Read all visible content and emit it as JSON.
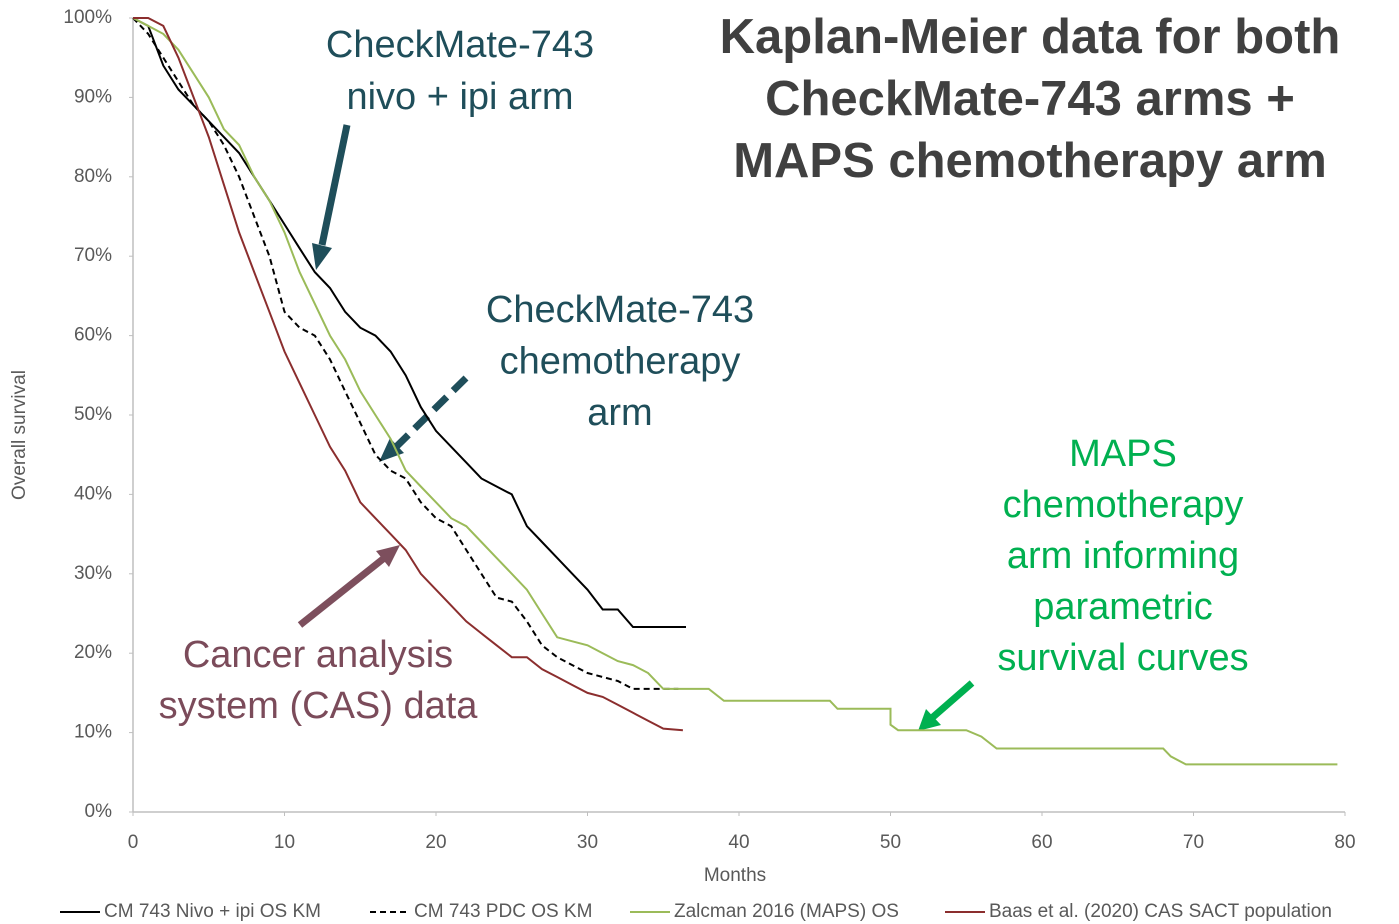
{
  "chart_data": {
    "type": "line",
    "title": [
      "Kaplan-Meier data for both",
      "CheckMate-743 arms +",
      "MAPS chemotherapy arm"
    ],
    "xlabel": "Months",
    "ylabel": "Overall survival",
    "xlim": [
      0,
      80
    ],
    "xticks": [
      0,
      10,
      20,
      30,
      40,
      50,
      60,
      70,
      80
    ],
    "ylim": [
      0,
      100
    ],
    "yticks": [
      {
        "value": 0,
        "label": "0%"
      },
      {
        "value": 10,
        "label": "10%"
      },
      {
        "value": 20,
        "label": "20%"
      },
      {
        "value": 30,
        "label": "30%"
      },
      {
        "value": 40,
        "label": "40%"
      },
      {
        "value": 50,
        "label": "50%"
      },
      {
        "value": 60,
        "label": "60%"
      },
      {
        "value": 70,
        "label": "70%"
      },
      {
        "value": 80,
        "label": "80%"
      },
      {
        "value": 90,
        "label": "90%"
      },
      {
        "value": 100,
        "label": "100%"
      }
    ],
    "grid": false,
    "series": [
      {
        "name": "CM 743 Nivo + ipi OS KM",
        "color": "#000000",
        "dash": false,
        "x": [
          0,
          1,
          2,
          3,
          4,
          5,
          6,
          7,
          8,
          9,
          10,
          11,
          12,
          13,
          14,
          15,
          16,
          17,
          18,
          19,
          20,
          21,
          22,
          23,
          24,
          25,
          26,
          27,
          28,
          29,
          30,
          31,
          32,
          33,
          36.5
        ],
        "values": [
          100,
          99,
          94,
          91,
          89,
          87,
          85,
          83,
          80,
          77,
          74,
          71,
          68,
          66,
          63,
          61,
          60,
          58,
          55,
          51,
          48,
          46,
          44,
          42,
          41,
          40,
          36,
          34,
          32,
          30,
          28,
          25.5,
          25.5,
          23.3,
          23.3
        ]
      },
      {
        "name": "CM 743 PDC OS KM",
        "color": "#000000",
        "dash": true,
        "x": [
          0,
          1,
          2,
          3,
          4,
          5,
          6,
          7,
          8,
          9,
          10,
          11,
          12,
          13,
          14,
          15,
          16,
          17,
          18,
          19,
          20,
          21,
          22,
          23,
          24,
          25,
          26,
          27,
          28,
          29,
          30,
          31,
          32,
          33,
          36
        ],
        "values": [
          100,
          98,
          95,
          92,
          89,
          87,
          84,
          80,
          75,
          70,
          63,
          61,
          60,
          57,
          53,
          49,
          45,
          43,
          42,
          39,
          37,
          36,
          33,
          30,
          27,
          26.5,
          24,
          21,
          19.5,
          18.5,
          17.5,
          17,
          16.5,
          15.5,
          15.5
        ]
      },
      {
        "name": "Zalcman 2016 (MAPS) OS",
        "color": "#9bbb59",
        "dash": false,
        "x": [
          0,
          1,
          2,
          3,
          4,
          5,
          6,
          7,
          8,
          9,
          10,
          11,
          12,
          13,
          14,
          15,
          16,
          17,
          18,
          19,
          20,
          21,
          22,
          23,
          24,
          25,
          26,
          27,
          28,
          29,
          30,
          31,
          32,
          33,
          34,
          35,
          38,
          39,
          46,
          46.5,
          50,
          50,
          50.5,
          55,
          56,
          57,
          68,
          68.5,
          69.5,
          79.5
        ],
        "values": [
          100,
          99,
          98,
          96,
          93,
          90,
          86,
          84,
          80,
          77,
          73,
          68,
          64,
          60,
          57,
          53,
          50,
          47,
          43,
          41,
          39,
          37,
          36,
          34,
          32,
          30,
          28,
          25,
          22,
          21.5,
          21,
          20,
          19,
          18.5,
          17.5,
          15.5,
          15.5,
          14,
          14,
          13,
          13,
          11,
          10.3,
          10.3,
          9.5,
          8,
          8,
          7,
          6,
          6
        ]
      },
      {
        "name": "Baas et al. (2020) CAS SACT population",
        "color": "#8b2e2e",
        "dash": false,
        "x": [
          0,
          1,
          2,
          3,
          4,
          5,
          6,
          7,
          8,
          9,
          10,
          11,
          12,
          13,
          14,
          15,
          16,
          17,
          18,
          19,
          20,
          21,
          22,
          23,
          24,
          25,
          26,
          27,
          28,
          29,
          30,
          31,
          32,
          33,
          34,
          35,
          36.3
        ],
        "values": [
          100,
          100,
          99,
          95,
          90,
          85,
          79,
          73,
          68,
          63,
          58,
          54,
          50,
          46,
          43,
          39,
          37,
          35,
          33,
          30,
          28,
          26,
          24,
          22.5,
          21,
          19.5,
          19.5,
          18,
          17,
          16,
          15,
          14.5,
          13.5,
          12.5,
          11.5,
          10.5,
          10.3
        ]
      }
    ],
    "annotations": [
      {
        "lines": [
          "CheckMate-743",
          "nivo + ipi arm"
        ],
        "color": "#1f4e5a"
      },
      {
        "lines": [
          "CheckMate-743",
          "chemotherapy",
          "arm"
        ],
        "color": "#1f4e5a"
      },
      {
        "lines": [
          "MAPS",
          "chemotherapy",
          "arm informing",
          "parametric",
          "survival curves"
        ],
        "color": "#00b050"
      },
      {
        "lines": [
          "Cancer analysis",
          "system (CAS) data"
        ],
        "color": "#7b4b5a"
      }
    ]
  }
}
